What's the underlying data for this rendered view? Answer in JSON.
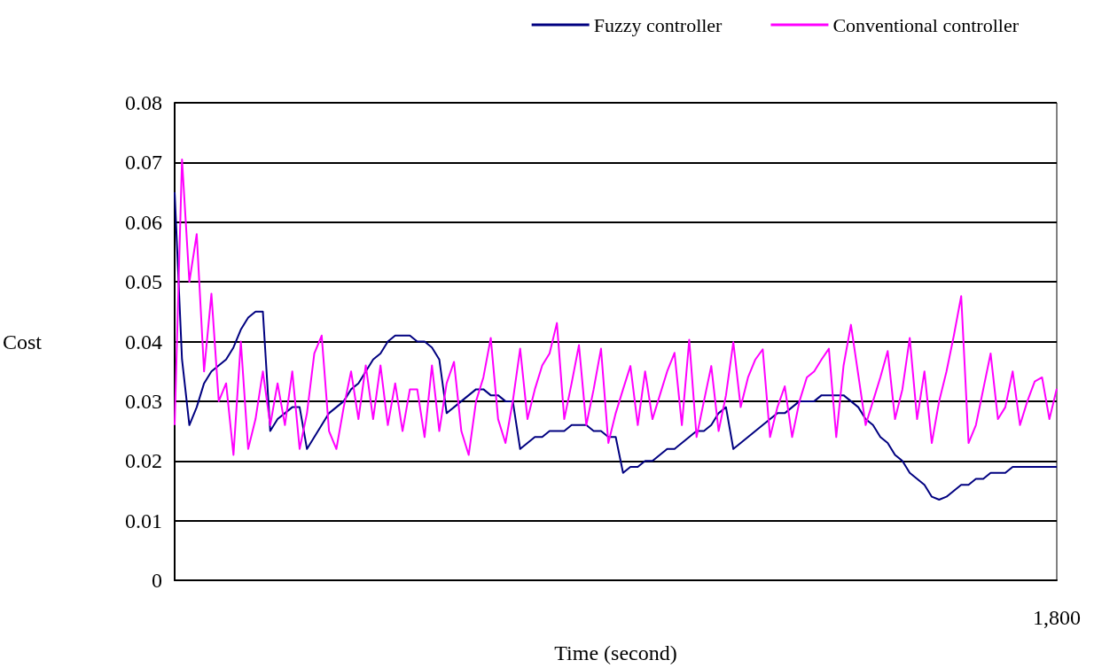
{
  "chart_data": {
    "type": "line",
    "xlabel": "Time (second)",
    "ylabel": "Cost",
    "categories": [
      null,
      null,
      null,
      null,
      null,
      null,
      null,
      null,
      null,
      null,
      null,
      null,
      null,
      null,
      null,
      null,
      null,
      null,
      null,
      null,
      null,
      null,
      null,
      null,
      null,
      null,
      null,
      null,
      null,
      null,
      null,
      null,
      null,
      null,
      null,
      null,
      null,
      null,
      null,
      null,
      null,
      null,
      null,
      null,
      null,
      null,
      null,
      null,
      null,
      null,
      null,
      null,
      null,
      null,
      null,
      null,
      null,
      null,
      null,
      null,
      null,
      null,
      null,
      null,
      null,
      null,
      null,
      null,
      null,
      null,
      null,
      null,
      null,
      null,
      null,
      null,
      null,
      null,
      null,
      null,
      null,
      null,
      null,
      null,
      null,
      null,
      null,
      null,
      null,
      null,
      null,
      null,
      null,
      null,
      null,
      null,
      null,
      null,
      null,
      null,
      null,
      null,
      null,
      null,
      null,
      null,
      null,
      null,
      null,
      null,
      null,
      null,
      null,
      null,
      null,
      null,
      null,
      null,
      null,
      null,
      "1,800"
    ],
    "ylim": [
      0,
      0.08
    ],
    "yticks": [
      0,
      0.01,
      0.02,
      0.03,
      0.04,
      0.05,
      0.06,
      0.07,
      0.08
    ],
    "grid": "y",
    "legend": "top right",
    "marker": "none",
    "line_style": "solid",
    "series": [
      {
        "name": "Fuzzy controller",
        "color": "#000080",
        "values": [
          0.065,
          0.037,
          0.026,
          0.029,
          0.033,
          0.035,
          0.036,
          0.037,
          0.039,
          0.042,
          0.044,
          0.045,
          0.045,
          0.025,
          0.027,
          0.028,
          0.029,
          0.029,
          0.022,
          0.024,
          0.026,
          0.028,
          0.029,
          0.03,
          0.032,
          0.033,
          0.035,
          0.037,
          0.038,
          0.04,
          0.041,
          0.041,
          0.041,
          0.04,
          0.04,
          0.039,
          0.037,
          0.028,
          0.029,
          0.03,
          0.031,
          0.032,
          0.032,
          0.031,
          0.031,
          0.03,
          0.03,
          0.022,
          0.023,
          0.024,
          0.024,
          0.025,
          0.025,
          0.025,
          0.026,
          0.026,
          0.026,
          0.025,
          0.025,
          0.024,
          0.024,
          0.018,
          0.019,
          0.019,
          0.02,
          0.02,
          0.021,
          0.022,
          0.022,
          0.023,
          0.024,
          0.025,
          0.025,
          0.026,
          0.028,
          0.029,
          0.022,
          0.023,
          0.024,
          0.025,
          0.026,
          0.027,
          0.028,
          0.028,
          0.029,
          0.03,
          0.03,
          0.03,
          0.031,
          0.031,
          0.031,
          0.031,
          0.03,
          0.029,
          0.027,
          0.026,
          0.024,
          0.023,
          0.021,
          0.02,
          0.018,
          0.017,
          0.016,
          0.014,
          0.0135,
          0.014,
          0.015,
          0.016,
          0.016,
          0.017,
          0.017,
          0.018,
          0.018,
          0.018,
          0.019,
          0.019,
          0.019,
          0.019,
          0.019,
          0.019,
          0.019
        ]
      },
      {
        "name": "Conventional controller",
        "color": "#ff00ff",
        "values": [
          0.026,
          0.0705,
          0.05,
          0.058,
          0.035,
          0.048,
          0.03,
          0.033,
          0.021,
          0.04,
          0.022,
          0.027,
          0.035,
          0.026,
          0.033,
          0.026,
          0.035,
          0.022,
          0.028,
          0.038,
          0.041,
          0.025,
          0.022,
          0.029,
          0.035,
          0.027,
          0.036,
          0.027,
          0.036,
          0.026,
          0.033,
          0.025,
          0.032,
          0.032,
          0.024,
          0.036,
          0.025,
          0.033,
          0.0366,
          0.025,
          0.021,
          0.03,
          0.034,
          0.0406,
          0.027,
          0.023,
          0.03,
          0.0388,
          0.027,
          0.032,
          0.036,
          0.038,
          0.0431,
          0.027,
          0.033,
          0.0394,
          0.026,
          0.032,
          0.0388,
          0.023,
          0.028,
          0.032,
          0.0359,
          0.026,
          0.035,
          0.027,
          0.031,
          0.035,
          0.0381,
          0.026,
          0.0403,
          0.024,
          0.03,
          0.0359,
          0.025,
          0.031,
          0.0399,
          0.029,
          0.034,
          0.037,
          0.0387,
          0.024,
          0.029,
          0.0325,
          0.024,
          0.03,
          0.034,
          0.035,
          0.037,
          0.0388,
          0.024,
          0.036,
          0.0428,
          0.0344,
          0.026,
          0.03,
          0.034,
          0.0384,
          0.027,
          0.032,
          0.0406,
          0.027,
          0.035,
          0.023,
          0.03,
          0.035,
          0.041,
          0.0476,
          0.023,
          0.026,
          0.032,
          0.038,
          0.027,
          0.029,
          0.035,
          0.026,
          0.03,
          0.0333,
          0.034,
          0.027,
          0.0321
        ]
      }
    ]
  }
}
